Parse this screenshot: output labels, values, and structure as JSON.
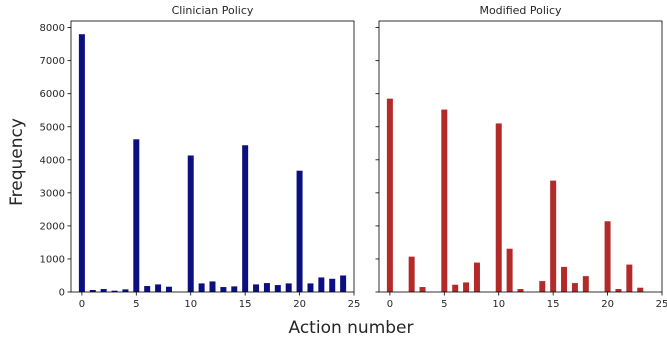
{
  "figure": {
    "xlabel": "Action number",
    "ylabel": "Frequency"
  },
  "chart_data": [
    {
      "type": "bar",
      "title": "Clinician Policy",
      "color": "#0b0f80",
      "xlim": [
        -1,
        25
      ],
      "ylim": [
        0,
        8200
      ],
      "xticks": [
        0,
        5,
        10,
        15,
        20,
        25
      ],
      "yticks": [
        0,
        1000,
        2000,
        3000,
        4000,
        5000,
        6000,
        7000,
        8000
      ],
      "x": [
        0,
        1,
        2,
        3,
        4,
        5,
        6,
        7,
        8,
        9,
        10,
        11,
        12,
        13,
        14,
        15,
        16,
        17,
        18,
        19,
        20,
        21,
        22,
        23,
        24
      ],
      "values": [
        7800,
        60,
        90,
        40,
        80,
        4620,
        180,
        230,
        160,
        0,
        4130,
        260,
        320,
        150,
        170,
        4440,
        230,
        270,
        210,
        260,
        3670,
        260,
        440,
        400,
        500
      ],
      "grid": false
    },
    {
      "type": "bar",
      "title": "Modified Policy",
      "color": "#b22a2a",
      "xlim": [
        -1,
        25
      ],
      "ylim": [
        0,
        8200
      ],
      "xticks": [
        0,
        5,
        10,
        15,
        20,
        25
      ],
      "yticks": [
        0,
        1000,
        2000,
        3000,
        4000,
        5000,
        6000,
        7000,
        8000
      ],
      "shared_y": true,
      "x": [
        0,
        1,
        2,
        3,
        4,
        5,
        6,
        7,
        8,
        9,
        10,
        11,
        12,
        13,
        14,
        15,
        16,
        17,
        18,
        19,
        20,
        21,
        22,
        23,
        24
      ],
      "values": [
        5850,
        0,
        1070,
        150,
        0,
        5520,
        220,
        290,
        890,
        0,
        5100,
        1310,
        90,
        0,
        330,
        3370,
        760,
        270,
        480,
        0,
        2140,
        90,
        830,
        130,
        0
      ],
      "grid": false
    }
  ]
}
